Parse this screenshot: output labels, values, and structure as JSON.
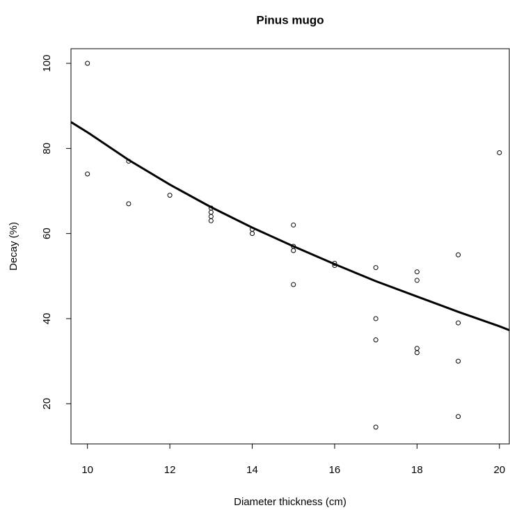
{
  "chart_data": {
    "type": "scatter",
    "title": "Pinus mugo",
    "x_label": "Diameter thickness (cm)",
    "y_label": "Decay (%)",
    "xlim": [
      9.6,
      20.24
    ],
    "ylim": [
      10.56,
      103.44
    ],
    "xticks": [
      10,
      12,
      14,
      16,
      18,
      20
    ],
    "yticks": [
      20,
      40,
      60,
      80,
      100
    ],
    "series": [
      {
        "type": "scatter",
        "color": "#000000",
        "x": [
          10,
          10,
          11,
          11,
          12,
          13,
          13,
          13,
          13,
          14,
          14,
          15,
          15,
          15,
          15,
          16,
          16,
          17,
          17,
          17,
          17,
          18,
          18,
          18,
          18,
          19,
          19,
          19,
          19,
          20
        ],
        "values": [
          100,
          74,
          77,
          67,
          69,
          66,
          65,
          64,
          63,
          61,
          60,
          62,
          57,
          56,
          48,
          53,
          52.5,
          52,
          40,
          35,
          14.5,
          51,
          49,
          33,
          32,
          55,
          39,
          30,
          17,
          79
        ]
      },
      {
        "type": "line",
        "color": "#000000",
        "x": [
          9.6,
          10,
          11,
          12,
          13,
          14,
          15,
          16,
          17,
          18,
          19,
          20,
          20.24
        ],
        "values": [
          86.2,
          83.8,
          77.3,
          71.5,
          66.2,
          61.4,
          57,
          52.8,
          48.8,
          45.2,
          41.6,
          38.2,
          37.3
        ]
      }
    ]
  }
}
